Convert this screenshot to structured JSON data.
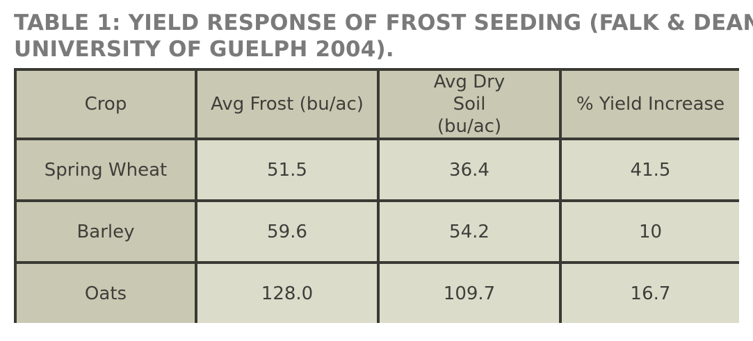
{
  "caption": {
    "line1": "TABLE 1: YIELD RESPONSE OF FROST SEEDING (FALK & DEAN,",
    "line2": "UNIVERSITY OF GUELPH 2004)."
  },
  "table": {
    "headers": [
      "Crop",
      "Avg Frost (bu/ac)",
      "Avg Dry Soil (bu/ac)",
      "% Yield Increase"
    ],
    "rows": [
      [
        "Spring Wheat",
        "51.5",
        "36.4",
        "41.5"
      ],
      [
        "Barley",
        "59.6",
        "54.2",
        "10"
      ],
      [
        "Oats",
        "128.0",
        "109.7",
        "16.7"
      ]
    ]
  },
  "colors": {
    "caption_text": "#7a7a7a",
    "border": "#3a3a34",
    "header_fill": "#c9c9b3",
    "cell_fill": "#dcdccb",
    "cell_text": "#3e3e3a"
  }
}
